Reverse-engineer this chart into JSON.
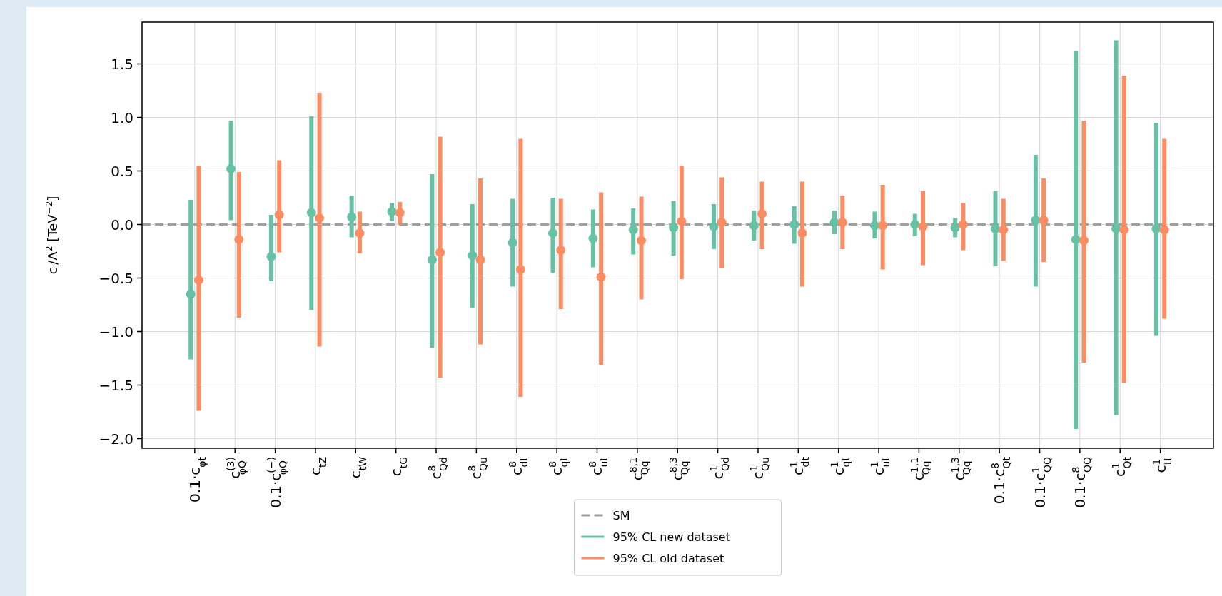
{
  "chart_data": {
    "type": "scatter",
    "ylabel": "c$_{i}$/Λ$^{2}$  [TeV$^{−2}$]",
    "categories": [
      "0.1·c$_{φt}$",
      "c$^{(3)}$$_{φQ}$",
      "0.1·c$^{(−)}$$_{φQ}$",
      "c$_{tZ}$",
      "c$_{tW}$",
      "c$_{tG}$",
      "c$^{8}$$_{Qd}$",
      "c$^{8}$$_{Qu}$",
      "c$^{8}$$_{dt}$",
      "c$^{8}$$_{qt}$",
      "c$^{8}$$_{ut}$",
      "c$^{8,1}$$_{Qq}$",
      "c$^{8,3}$$_{Qq}$",
      "c$^{1}$$_{Qd}$",
      "c$^{1}$$_{Qu}$",
      "c$^{1}$$_{dt}$",
      "c$^{1}$$_{qt}$",
      "c$^{1}$$_{ut}$",
      "c$^{1,1}$$_{Qq}$",
      "c$^{1,3}$$_{Qq}$",
      "0.1·c$^{8}$$_{Qt}$",
      "0.1·c$^{1}$$_{QQ}$",
      "0.1·c$^{8}$$_{QQ}$",
      "c$^{1}$$_{Qt}$",
      "c$^{1}$$_{tt}$"
    ],
    "series": [
      {
        "name": "95% CL new dataset",
        "color": "#66c2a5",
        "values": [
          -0.65,
          0.52,
          -0.3,
          0.11,
          0.07,
          0.12,
          -0.33,
          -0.29,
          -0.17,
          -0.08,
          -0.13,
          -0.05,
          -0.03,
          -0.02,
          -0.01,
          0.0,
          0.02,
          -0.01,
          0.0,
          -0.03,
          -0.04,
          0.04,
          -0.14,
          -0.04,
          -0.04
        ],
        "errors": [
          [
            -1.26,
            0.23
          ],
          [
            0.04,
            0.97
          ],
          [
            -0.53,
            0.09
          ],
          [
            -0.8,
            1.01
          ],
          [
            -0.12,
            0.27
          ],
          [
            0.03,
            0.2
          ],
          [
            -1.15,
            0.47
          ],
          [
            -0.78,
            0.19
          ],
          [
            -0.58,
            0.24
          ],
          [
            -0.45,
            0.25
          ],
          [
            -0.4,
            0.14
          ],
          [
            -0.28,
            0.15
          ],
          [
            -0.29,
            0.22
          ],
          [
            -0.23,
            0.19
          ],
          [
            -0.15,
            0.13
          ],
          [
            -0.18,
            0.17
          ],
          [
            -0.09,
            0.13
          ],
          [
            -0.13,
            0.12
          ],
          [
            -0.11,
            0.1
          ],
          [
            -0.12,
            0.06
          ],
          [
            -0.39,
            0.31
          ],
          [
            -0.58,
            0.65
          ],
          [
            -1.91,
            1.62
          ],
          [
            -1.78,
            1.72
          ],
          [
            -1.04,
            0.95
          ]
        ]
      },
      {
        "name": "95% CL old dataset",
        "color": "#fc8d62",
        "values": [
          -0.52,
          -0.14,
          0.09,
          0.06,
          -0.08,
          0.11,
          -0.26,
          -0.33,
          -0.42,
          -0.24,
          -0.49,
          -0.15,
          0.03,
          0.02,
          0.1,
          -0.08,
          0.02,
          -0.01,
          -0.02,
          0.0,
          -0.05,
          0.04,
          -0.15,
          -0.05,
          -0.05
        ],
        "errors": [
          [
            -1.74,
            0.55
          ],
          [
            -0.87,
            0.49
          ],
          [
            -0.26,
            0.6
          ],
          [
            -1.14,
            1.23
          ],
          [
            -0.27,
            0.12
          ],
          [
            0.0,
            0.21
          ],
          [
            -1.43,
            0.82
          ],
          [
            -1.12,
            0.43
          ],
          [
            -1.61,
            0.8
          ],
          [
            -0.79,
            0.24
          ],
          [
            -1.31,
            0.3
          ],
          [
            -0.7,
            0.26
          ],
          [
            -0.51,
            0.55
          ],
          [
            -0.41,
            0.44
          ],
          [
            -0.23,
            0.4
          ],
          [
            -0.58,
            0.4
          ],
          [
            -0.23,
            0.27
          ],
          [
            -0.42,
            0.37
          ],
          [
            -0.38,
            0.31
          ],
          [
            -0.24,
            0.2
          ],
          [
            -0.34,
            0.24
          ],
          [
            -0.35,
            0.43
          ],
          [
            -1.29,
            0.97
          ],
          [
            -1.48,
            1.39
          ],
          [
            -0.88,
            0.8
          ]
        ]
      }
    ],
    "ref_lines": [
      {
        "axis": "y",
        "value": 0,
        "label": "SM",
        "color": "#a0a0a0",
        "line_style": "dashed"
      }
    ],
    "ylim": [
      -2.09,
      1.89
    ],
    "yticks": [
      {
        "value": -2.0,
        "label": "−2.0"
      },
      {
        "value": -1.5,
        "label": "−1.5"
      },
      {
        "value": -1.0,
        "label": "−1.0"
      },
      {
        "value": -0.5,
        "label": "−0.5"
      },
      {
        "value": 0,
        "label": "0.0"
      },
      {
        "value": 0.5,
        "label": "0.5"
      },
      {
        "value": 1.0,
        "label": "1.0"
      },
      {
        "value": 1.5,
        "label": "1.5"
      }
    ],
    "grid": true,
    "legend": "bottom",
    "marker": "circle"
  }
}
